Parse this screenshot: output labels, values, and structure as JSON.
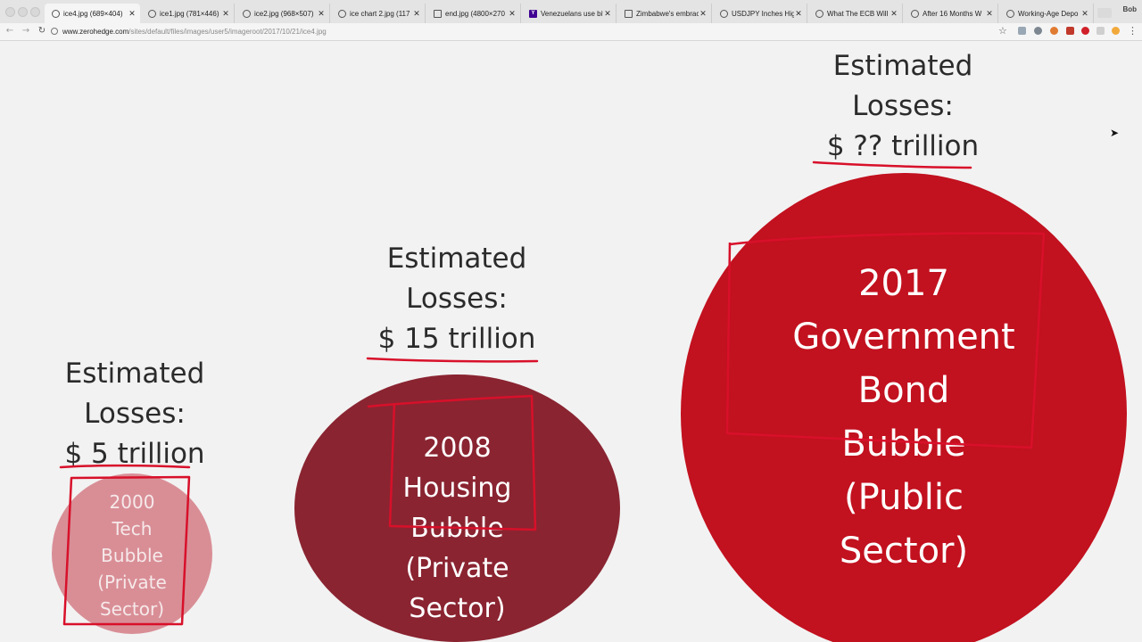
{
  "browser": {
    "tabs": [
      {
        "label": "ice4.jpg (689×404)",
        "icon": "page-icon",
        "active": true
      },
      {
        "label": "ice1.jpg (781×446)",
        "icon": "page-icon"
      },
      {
        "label": "ice2.jpg (968×507)",
        "icon": "page-icon"
      },
      {
        "label": "ice chart 2.jpg (117",
        "icon": "page-icon"
      },
      {
        "label": "end.jpg (4800×270",
        "icon": "doc-icon"
      },
      {
        "label": "Venezuelans use bit",
        "icon": "yahoo-icon"
      },
      {
        "label": "Zimbabwe's embrac",
        "icon": "doc-icon"
      },
      {
        "label": "USDJPY Inches Hig",
        "icon": "page-icon"
      },
      {
        "label": "What The ECB Will",
        "icon": "page-icon"
      },
      {
        "label": "After 16 Months W",
        "icon": "page-icon"
      },
      {
        "label": "Working-Age Depo",
        "icon": "page-icon"
      }
    ],
    "close_glyph": "✕",
    "profile": "Bob",
    "url_host": "www.zerohedge.com",
    "url_path": "/sites/default/files/images/user5/imageroot/2017/10/21/ice4.jpg"
  },
  "colors": {
    "bubble_2000": "#d98e96",
    "bubble_2008": "#8a2431",
    "bubble_2017": "#c2111f",
    "annotation_pen": "#d8102a"
  },
  "slide": {
    "caption_2000": {
      "line1": "Estimated",
      "line2": "Losses:",
      "amount": "$ 5 trillion"
    },
    "caption_2008": {
      "line1": "Estimated",
      "line2": "Losses:",
      "amount": "$ 15 trillion"
    },
    "caption_2017": {
      "line1": "Estimated",
      "line2": "Losses:",
      "amount": "$ ?? trillion"
    },
    "bubble_2000": {
      "l1": "2000",
      "l2": "Tech",
      "l3": "Bubble",
      "l4": "(Private",
      "l5": "Sector)"
    },
    "bubble_2008": {
      "l1": "2008",
      "l2": "Housing",
      "l3": "Bubble",
      "l4": "(Private",
      "l5": "Sector)"
    },
    "bubble_2017": {
      "l1": "2017",
      "l2": "Government",
      "l3": "Bond",
      "l4": "Bubble",
      "l5": "(Public",
      "l6": "Sector)"
    }
  }
}
